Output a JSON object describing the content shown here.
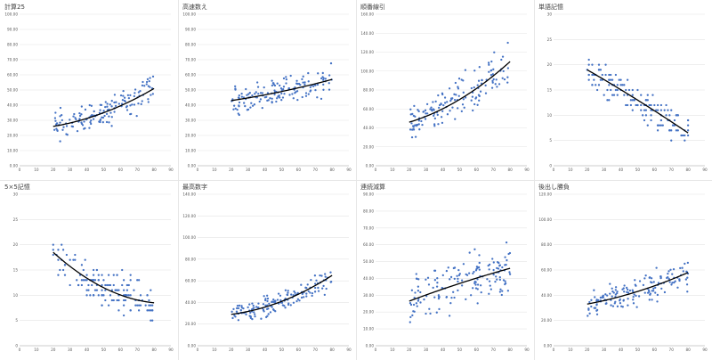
{
  "chart_data": [
    {
      "type": "scatter",
      "title": "計算25",
      "xlim": [
        0,
        90
      ],
      "xticks": [
        0,
        10,
        20,
        30,
        40,
        50,
        60,
        70,
        80,
        90
      ],
      "ylim": [
        0,
        100
      ],
      "yticks": [
        0,
        10,
        20,
        30,
        40,
        50,
        60,
        70,
        80,
        90,
        100
      ],
      "ytick_labels": [
        "0.00",
        "10.00",
        "20.00",
        "30.00",
        "40.00",
        "50.00",
        "60.00",
        "70.00",
        "80.00",
        "90.00",
        "100.00"
      ],
      "trend": {
        "x": [
          20,
          50,
          80
        ],
        "y": [
          26,
          35,
          51
        ]
      },
      "gen": {
        "n": 150,
        "seed": 11,
        "spread": 6.5,
        "grow": 0.12,
        "clip": [
          14,
          91
        ]
      },
      "colors": {
        "points": "#4472c4",
        "trend": "#000000"
      }
    },
    {
      "type": "scatter",
      "title": "高速数え",
      "xlim": [
        0,
        90
      ],
      "xticks": [
        0,
        10,
        20,
        30,
        40,
        50,
        60,
        70,
        80,
        90
      ],
      "ylim": [
        0,
        100
      ],
      "yticks": [
        0,
        10,
        20,
        30,
        40,
        50,
        60,
        70,
        80,
        90,
        100
      ],
      "ytick_labels": [
        "0.00",
        "10.00",
        "20.00",
        "30.00",
        "40.00",
        "50.00",
        "60.00",
        "70.00",
        "80.00",
        "90.00",
        "100.00"
      ],
      "trend": {
        "x": [
          20,
          50,
          80
        ],
        "y": [
          43,
          49,
          57
        ]
      },
      "gen": {
        "n": 150,
        "seed": 23,
        "spread": 7.5,
        "grow": 0.05,
        "clip": [
          30,
          93
        ]
      },
      "colors": {
        "points": "#4472c4",
        "trend": "#000000"
      }
    },
    {
      "type": "scatter",
      "title": "順番線引",
      "xlim": [
        0,
        90
      ],
      "xticks": [
        0,
        10,
        20,
        30,
        40,
        50,
        60,
        70,
        80,
        90
      ],
      "ylim": [
        0,
        160
      ],
      "yticks": [
        0,
        20,
        40,
        60,
        80,
        100,
        120,
        140,
        160
      ],
      "ytick_labels": [
        "0.00",
        "20.00",
        "40.00",
        "60.00",
        "80.00",
        "100.00",
        "120.00",
        "140.00",
        "160.00"
      ],
      "trend": {
        "x": [
          20,
          50,
          80
        ],
        "y": [
          46,
          70,
          110
        ]
      },
      "gen": {
        "n": 150,
        "seed": 37,
        "spread": 14,
        "grow": 0.15,
        "clip": [
          30,
          152
        ]
      },
      "colors": {
        "points": "#4472c4",
        "trend": "#000000"
      }
    },
    {
      "type": "scatter",
      "title": "単語記憶",
      "xlim": [
        0,
        90
      ],
      "xticks": [
        0,
        10,
        20,
        30,
        40,
        50,
        60,
        70,
        80,
        90
      ],
      "ylim": [
        0,
        30
      ],
      "yticks": [
        0,
        5,
        10,
        15,
        20,
        25,
        30
      ],
      "ytick_labels": [
        "0",
        "5",
        "10",
        "15",
        "20",
        "25",
        "30"
      ],
      "trend": {
        "x": [
          20,
          50,
          80
        ],
        "y": [
          19,
          13,
          6.5
        ]
      },
      "gen": {
        "n": 150,
        "seed": 53,
        "spread": 2.8,
        "grow": 0.0,
        "clip": [
          0,
          24
        ],
        "round": 1
      },
      "colors": {
        "points": "#4472c4",
        "trend": "#000000"
      }
    },
    {
      "type": "scatter",
      "title": "5×5記憶",
      "xlim": [
        0,
        90
      ],
      "xticks": [
        0,
        10,
        20,
        30,
        40,
        50,
        60,
        70,
        80,
        90
      ],
      "ylim": [
        0,
        30
      ],
      "yticks": [
        0,
        5,
        10,
        15,
        20,
        25,
        30
      ],
      "ytick_labels": [
        "0",
        "5",
        "10",
        "15",
        "20",
        "25",
        "30"
      ],
      "trend": {
        "x": [
          20,
          50,
          80
        ],
        "y": [
          18.5,
          11.5,
          8.5
        ]
      },
      "gen": {
        "n": 150,
        "seed": 71,
        "spread": 3.0,
        "grow": 0.0,
        "clip": [
          0,
          24
        ],
        "round": 1
      },
      "colors": {
        "points": "#4472c4",
        "trend": "#000000"
      }
    },
    {
      "type": "scatter",
      "title": "最高数字",
      "xlim": [
        0,
        90
      ],
      "xticks": [
        0,
        10,
        20,
        30,
        40,
        50,
        60,
        70,
        80,
        90
      ],
      "ylim": [
        0,
        140
      ],
      "yticks": [
        0,
        20,
        40,
        60,
        80,
        100,
        120,
        140
      ],
      "ytick_labels": [
        "0.00",
        "20.00",
        "40.00",
        "60.00",
        "80.00",
        "100.00",
        "120.00",
        "140.00"
      ],
      "trend": {
        "x": [
          20,
          50,
          80
        ],
        "y": [
          29,
          41,
          65
        ]
      },
      "gen": {
        "n": 150,
        "seed": 89,
        "spread": 6.5,
        "grow": 0.22,
        "clip": [
          20,
          124
        ]
      },
      "colors": {
        "points": "#4472c4",
        "trend": "#000000"
      }
    },
    {
      "type": "scatter",
      "title": "連続減算",
      "xlim": [
        0,
        90
      ],
      "xticks": [
        0,
        10,
        20,
        30,
        40,
        50,
        60,
        70,
        80,
        90
      ],
      "ylim": [
        0,
        90
      ],
      "yticks": [
        0,
        10,
        20,
        30,
        40,
        50,
        60,
        70,
        80,
        90
      ],
      "ytick_labels": [
        "0.00",
        "10.00",
        "20.00",
        "30.00",
        "40.00",
        "50.00",
        "60.00",
        "70.00",
        "80.00",
        "90.00"
      ],
      "trend": {
        "x": [
          20,
          50,
          80
        ],
        "y": [
          26.5,
          37,
          46
        ]
      },
      "gen": {
        "n": 150,
        "seed": 97,
        "spread": 11,
        "grow": 0.06,
        "clip": [
          14,
          80
        ]
      },
      "colors": {
        "points": "#4472c4",
        "trend": "#000000"
      }
    },
    {
      "type": "scatter",
      "title": "後出し勝負",
      "xlim": [
        0,
        90
      ],
      "xticks": [
        0,
        10,
        20,
        30,
        40,
        50,
        60,
        70,
        80,
        90
      ],
      "ylim": [
        0,
        120
      ],
      "yticks": [
        0,
        20,
        40,
        60,
        80,
        100,
        120
      ],
      "ytick_labels": [
        "0.00",
        "20.00",
        "40.00",
        "60.00",
        "80.00",
        "100.00",
        "120.00"
      ],
      "trend": {
        "x": [
          20,
          50,
          80
        ],
        "y": [
          33,
          43,
          58
        ]
      },
      "gen": {
        "n": 150,
        "seed": 113,
        "spread": 8,
        "grow": 0.12,
        "clip": [
          22,
          108
        ]
      },
      "colors": {
        "points": "#4472c4",
        "trend": "#000000"
      }
    }
  ]
}
